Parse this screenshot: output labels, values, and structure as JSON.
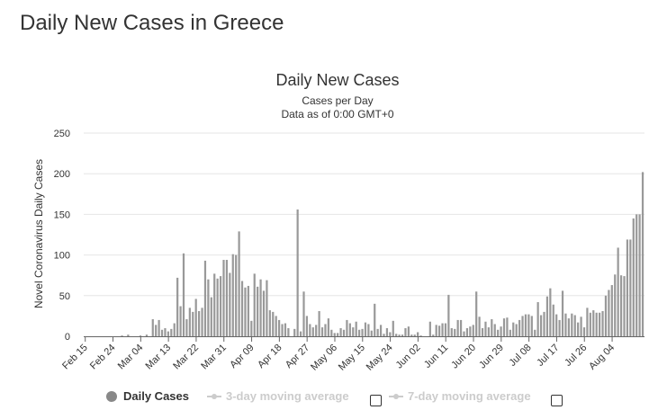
{
  "page": {
    "title": "Daily New Cases in Greece"
  },
  "legend": {
    "daily_cases": "Daily Cases",
    "ma3": "3-day moving average",
    "ma7": "7-day moving average"
  },
  "colors": {
    "bars": "#999999",
    "grid": "#e6e6e6",
    "legend_inactive": "#cccccc"
  },
  "chart_data": {
    "type": "bar",
    "title": "Daily New Cases",
    "subtitle_lines": [
      "Cases per Day",
      "Data as of 0:00 GMT+0"
    ],
    "ylabel": "Novel Coronavirus Daily Cases",
    "xlabel": "",
    "ylim": [
      0,
      250
    ],
    "yticks": [
      0,
      50,
      100,
      150,
      200,
      250
    ],
    "grid": true,
    "legend_position": "bottom",
    "start_date": "Feb 15",
    "xtick_labels": [
      "Feb 15",
      "Feb 24",
      "Mar 04",
      "Mar 13",
      "Mar 22",
      "Mar 31",
      "Apr 09",
      "Apr 18",
      "Apr 27",
      "May 06",
      "May 15",
      "May 24",
      "Jun 02",
      "Jun 11",
      "Jun 20",
      "Jun 29",
      "Jul 08",
      "Jul 17",
      "Jul 26",
      "Aug 04"
    ],
    "series": [
      {
        "name": "Daily Cases",
        "values": [
          0,
          0,
          0,
          0,
          0,
          0,
          0,
          0,
          0,
          0,
          0,
          0,
          1,
          0,
          2,
          0,
          0,
          0,
          1,
          0,
          2,
          0,
          21,
          14,
          20,
          8,
          10,
          6,
          9,
          16,
          72,
          37,
          102,
          21,
          35,
          30,
          46,
          31,
          35,
          93,
          70,
          48,
          77,
          71,
          74,
          94,
          94,
          78,
          101,
          100,
          129,
          68,
          60,
          62,
          19,
          77,
          61,
          70,
          56,
          69,
          32,
          30,
          25,
          20,
          15,
          16,
          10,
          0,
          9,
          156,
          6,
          55,
          25,
          15,
          11,
          14,
          31,
          11,
          15,
          22,
          8,
          4,
          4,
          10,
          8,
          20,
          16,
          11,
          18,
          8,
          9,
          17,
          15,
          7,
          40,
          9,
          14,
          3,
          10,
          5,
          19,
          3,
          2,
          2,
          10,
          12,
          2,
          2,
          5,
          1,
          0,
          0,
          18,
          2,
          14,
          13,
          16,
          16,
          51,
          10,
          9,
          20,
          20,
          6,
          10,
          12,
          14,
          55,
          24,
          10,
          18,
          11,
          21,
          15,
          8,
          12,
          22,
          23,
          8,
          17,
          15,
          20,
          25,
          27,
          27,
          25,
          8,
          42,
          26,
          30,
          49,
          59,
          39,
          27,
          20,
          56,
          28,
          22,
          28,
          26,
          17,
          24,
          11,
          35,
          29,
          32,
          29,
          29,
          31,
          50,
          57,
          63,
          76,
          109,
          75,
          74,
          119,
          119,
          145,
          150,
          150,
          202
        ]
      }
    ]
  }
}
